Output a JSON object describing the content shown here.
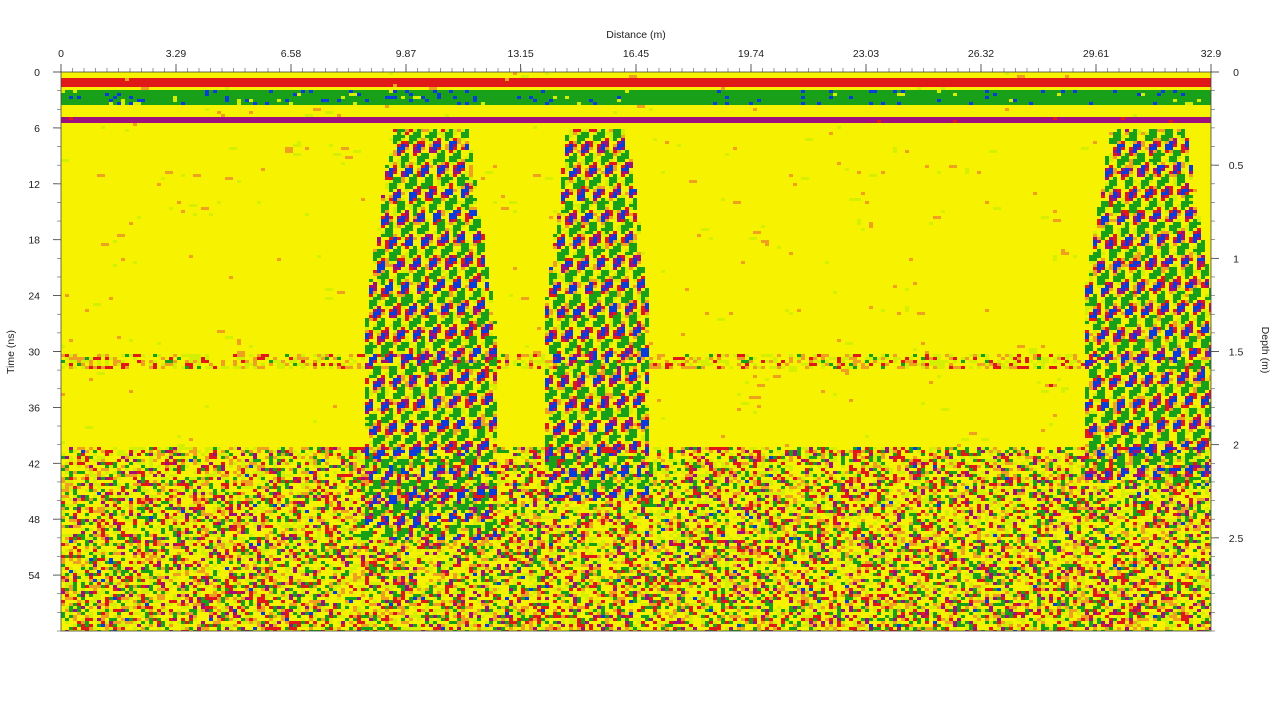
{
  "chart_data": {
    "type": "heatmap",
    "x_axis": {
      "label": "Distance (m)",
      "position": "top",
      "range": [
        0,
        32.9
      ],
      "ticks": [
        0,
        3.29,
        6.58,
        9.87,
        13.15,
        16.45,
        19.74,
        23.03,
        26.32,
        29.61,
        32.9
      ],
      "tick_labels": [
        "0",
        "3.29",
        "6.58",
        "9.87",
        "13.15",
        "16.45",
        "19.74",
        "23.03",
        "26.32",
        "29.61",
        "32.9"
      ]
    },
    "y_axis_left": {
      "label": "Time (ns)",
      "range": [
        0,
        60
      ],
      "ticks": [
        0,
        6,
        12,
        18,
        24,
        30,
        36,
        42,
        48,
        54
      ],
      "tick_labels": [
        "0",
        "6",
        "12",
        "18",
        "24",
        "30",
        "36",
        "42",
        "48",
        "54"
      ],
      "inverted": true
    },
    "y_axis_right": {
      "label": "Depth (m)",
      "range": [
        0,
        3.0
      ],
      "ticks": [
        0,
        0.5,
        1,
        1.5,
        2,
        2.5
      ],
      "tick_labels": [
        "0",
        "0.5",
        "1",
        "1.5",
        "2",
        "2.5"
      ],
      "inverted": true
    },
    "colormap": [
      "#0a3cdc",
      "#a0107c",
      "#e01818",
      "#f0a020",
      "#f6f200",
      "#d4f000",
      "#18a018"
    ],
    "surface_bands_time_ns": [
      1,
      2.5,
      5
    ],
    "anomalies": [
      {
        "x_range": [
          8.6,
          12.4
        ],
        "t_range": [
          5,
          50
        ]
      },
      {
        "x_range": [
          13.8,
          16.8
        ],
        "t_range": [
          5,
          46
        ]
      },
      {
        "x_range": [
          29.2,
          32.9
        ],
        "t_range": [
          5,
          44
        ]
      }
    ],
    "noisy_zone_start_ns": 40,
    "grid": false
  }
}
